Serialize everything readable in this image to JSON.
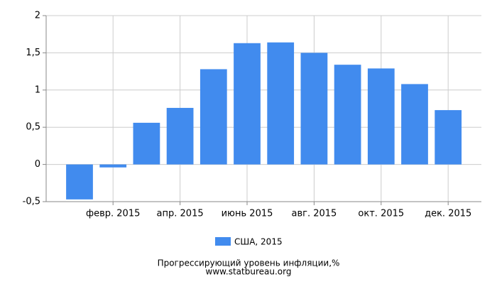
{
  "chart_data": {
    "type": "bar",
    "title": "Прогрессирующий уровень инфляции,%",
    "subtitle": "www.statbureau.org",
    "categories": [
      null,
      "февр. 2015",
      null,
      "апр. 2015",
      null,
      "июнь 2015",
      null,
      "авг. 2015",
      null,
      "окт. 2015",
      null,
      "дек. 2015"
    ],
    "series": [
      {
        "name": "США, 2015",
        "color": "#418bee",
        "values": [
          -0.47,
          -0.04,
          0.56,
          0.76,
          1.28,
          1.63,
          1.64,
          1.5,
          1.34,
          1.29,
          1.08,
          0.73
        ]
      }
    ],
    "ylim": [
      -0.5,
      2
    ],
    "yticks": [
      {
        "value": -0.5,
        "label": "-0,5"
      },
      0,
      {
        "value": 0.5,
        "label": "0,5"
      },
      1,
      {
        "value": 1.5,
        "label": "1,5"
      },
      2
    ],
    "grid": true
  }
}
